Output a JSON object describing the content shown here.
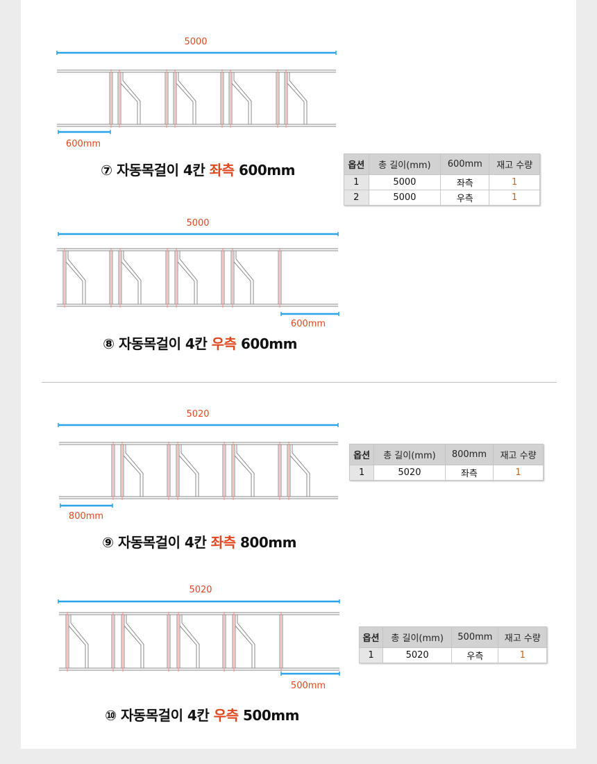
{
  "sections": [
    {
      "total": "5000",
      "sub": "600mm",
      "title": {
        "num": "⑦",
        "pre": "자동목걸이 4칸",
        "side": "좌측",
        "size": "600mm"
      },
      "variant": "left"
    },
    {
      "total": "5000",
      "sub": "600mm",
      "title": {
        "num": "⑧",
        "pre": "자동목걸이 4칸",
        "side": "우측",
        "size": "600mm"
      },
      "variant": "right"
    },
    {
      "total": "5020",
      "sub": "800mm",
      "title": {
        "num": "⑨",
        "pre": "자동목걸이 4칸",
        "side": "좌측",
        "size": "800mm"
      },
      "variant": "left"
    },
    {
      "total": "5020",
      "sub": "500mm",
      "title": {
        "num": "⑩",
        "pre": "자동목걸이 4칸",
        "side": "우측",
        "size": "500mm"
      },
      "variant": "right"
    }
  ],
  "tables": [
    {
      "headers": [
        "옵션",
        "총 길이(mm)",
        "600mm",
        "재고 수량"
      ],
      "rows": [
        [
          "1",
          "5000",
          "좌측",
          "1"
        ],
        [
          "2",
          "5000",
          "우측",
          "1"
        ]
      ]
    },
    {
      "headers": [
        "옵션",
        "총 길이(mm)",
        "800mm",
        "재고 수량"
      ],
      "rows": [
        [
          "1",
          "5020",
          "좌측",
          "1"
        ]
      ]
    },
    {
      "headers": [
        "옵션",
        "총 길이(mm)",
        "500mm",
        "재고 수량"
      ],
      "rows": [
        [
          "1",
          "5020",
          "우측",
          "1"
        ]
      ]
    }
  ],
  "colors": {
    "dimension": "#29a3e8",
    "label": "#e0481f",
    "rail": "#8a8a8a",
    "bar_mark": "#f08a80",
    "qty": "#c2661e"
  }
}
